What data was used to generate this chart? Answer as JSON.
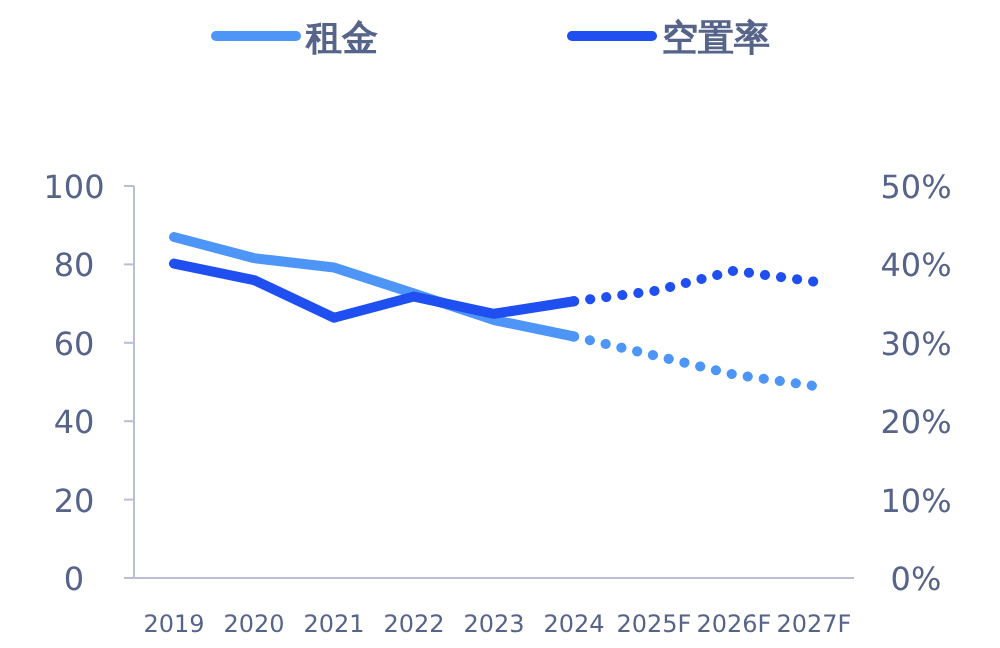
{
  "chart_data": {
    "type": "line",
    "categories": [
      "2019",
      "2020",
      "2021",
      "2022",
      "2023",
      "2024",
      "2025F",
      "2026F",
      "2027F"
    ],
    "series": [
      {
        "name": "租金",
        "color": "#4d96f7",
        "line_style": "solid",
        "values": [
          87,
          81.6,
          79.2,
          72.6,
          65.8,
          61.6,
          null,
          null,
          null
        ]
      },
      {
        "name": "空置率",
        "color": "#1f4ff0",
        "line_style": "solid",
        "axis": "y2",
        "values": [
          40.1,
          38,
          33.2,
          35.9,
          33.7,
          35.3,
          null,
          null,
          null
        ]
      },
      {
        "color": "#4d96f7",
        "line_style": "dotted",
        "values": [
          null,
          null,
          null,
          null,
          null,
          61.6,
          56.8,
          51.9,
          49
        ]
      },
      {
        "color": "#1f4ff0",
        "line_style": "dotted",
        "axis": "y2",
        "values": [
          null,
          null,
          null,
          null,
          null,
          35.3,
          36.6,
          39.2,
          37.8
        ]
      }
    ],
    "ylim": [
      0,
      100
    ],
    "yticks": [
      0,
      20,
      40,
      60,
      80,
      100
    ],
    "y2lim": [
      0,
      50
    ],
    "y2ticks": [
      {
        "value": 0,
        "label": "0%"
      },
      {
        "value": 10,
        "label": "10%"
      },
      {
        "value": 20,
        "label": "20%"
      },
      {
        "value": 30,
        "label": "30%"
      },
      {
        "value": 40,
        "label": "40%"
      },
      {
        "value": 50,
        "label": "50%"
      }
    ],
    "legend": "top",
    "marker": "none",
    "grid": false
  }
}
